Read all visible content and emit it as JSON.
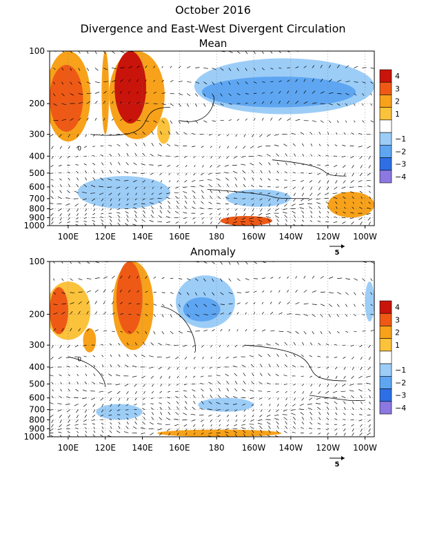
{
  "title": "October 2016",
  "subtitle": "Divergence and East-West Divergent Circulation",
  "colors": {
    "pos4": "#c8140a",
    "pos3": "#ee5a16",
    "pos2": "#f7a21a",
    "pos1": "#fbc23c",
    "neg1": "#9ccdf7",
    "neg2": "#5ea6f2",
    "neg3": "#2e6fe6",
    "neg4": "#8c78e0",
    "white": "#ffffff"
  },
  "colorbar_labels": [
    "4",
    "3",
    "2",
    "1",
    "−1",
    "−2",
    "−3",
    "−4"
  ],
  "x_ticks": [
    "100E",
    "120E",
    "140E",
    "160E",
    "180",
    "160W",
    "140W",
    "120W",
    "100W"
  ],
  "y_ticks": [
    "100",
    "200",
    "300",
    "400",
    "500",
    "600",
    "700",
    "800",
    "900",
    "1000"
  ],
  "reference_vector_label": "5",
  "zero_contour_label": "0",
  "chart_data": [
    {
      "type": "heatmap",
      "title": "Mean",
      "xlabel": "",
      "ylabel": "",
      "x_range": [
        "90E",
        "95W"
      ],
      "y_range_hPa": [
        1000,
        100
      ],
      "levels": [
        -4,
        -3,
        -2,
        -1,
        1,
        2,
        3,
        4
      ],
      "regions": [
        {
          "lon": [
            90,
            108
          ],
          "p": [
            120,
            290
          ],
          "value": 3
        },
        {
          "lon": [
            88,
            112
          ],
          "p": [
            100,
            330
          ],
          "value": 2
        },
        {
          "lon": [
            118,
            122
          ],
          "p": [
            100,
            300
          ],
          "value": 2
        },
        {
          "lon": [
            125,
            142
          ],
          "p": [
            100,
            260
          ],
          "value": 4
        },
        {
          "lon": [
            122,
            152
          ],
          "p": [
            100,
            320
          ],
          "value": 2
        },
        {
          "lon": [
            148,
            155
          ],
          "p": [
            240,
            340
          ],
          "value": 1
        },
        {
          "lon": [
            168,
            265
          ],
          "p": [
            110,
            230
          ],
          "value": -1
        },
        {
          "lon": [
            172,
            255
          ],
          "p": [
            140,
            210
          ],
          "value": -2
        },
        {
          "lon": [
            105,
            155
          ],
          "p": [
            520,
            800
          ],
          "value": -1
        },
        {
          "lon": [
            185,
            220
          ],
          "p": [
            620,
            780
          ],
          "value": -1
        },
        {
          "lon": [
            240,
            265
          ],
          "p": [
            640,
            900
          ],
          "value": 2
        },
        {
          "lon": [
            182,
            210
          ],
          "p": [
            880,
            1000
          ],
          "value": 3
        }
      ]
    },
    {
      "type": "heatmap",
      "title": "Anomaly",
      "xlabel": "",
      "ylabel": "",
      "x_range": [
        "90E",
        "95W"
      ],
      "y_range_hPa": [
        1000,
        100
      ],
      "levels": [
        -4,
        -3,
        -2,
        -1,
        1,
        2,
        3,
        4
      ],
      "regions": [
        {
          "lon": [
            90,
            100
          ],
          "p": [
            140,
            260
          ],
          "value": 3
        },
        {
          "lon": [
            88,
            112
          ],
          "p": [
            130,
            280
          ],
          "value": 1
        },
        {
          "lon": [
            108,
            115
          ],
          "p": [
            240,
            330
          ],
          "value": 2
        },
        {
          "lon": [
            126,
            140
          ],
          "p": [
            100,
            260
          ],
          "value": 3
        },
        {
          "lon": [
            124,
            146
          ],
          "p": [
            100,
            320
          ],
          "value": 2
        },
        {
          "lon": [
            158,
            190
          ],
          "p": [
            120,
            240
          ],
          "value": -1
        },
        {
          "lon": [
            162,
            182
          ],
          "p": [
            160,
            220
          ],
          "value": -2
        },
        {
          "lon": [
            260,
            265
          ],
          "p": [
            130,
            220
          ],
          "value": -1
        },
        {
          "lon": [
            115,
            140
          ],
          "p": [
            650,
            800
          ],
          "value": -1
        },
        {
          "lon": [
            170,
            200
          ],
          "p": [
            600,
            720
          ],
          "value": -1
        },
        {
          "lon": [
            148,
            215
          ],
          "p": [
            910,
            1000
          ],
          "value": 2
        }
      ]
    }
  ]
}
